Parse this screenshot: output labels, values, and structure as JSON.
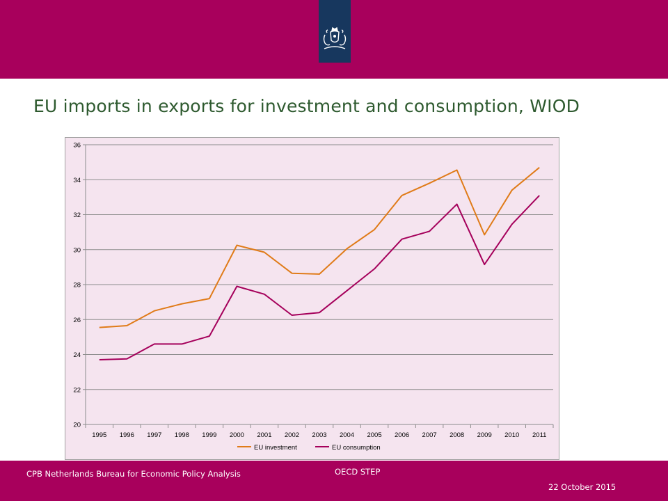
{
  "header": {
    "brand_color": "#a8005c",
    "logo_color": "#17375e",
    "logo_icon": "royal-coat-of-arms-icon"
  },
  "slide": {
    "title": "EU imports in exports for investment and consumption, WIOD"
  },
  "chart_data": {
    "type": "line",
    "title": "",
    "xlabel": "",
    "ylabel": "",
    "categories": [
      "1995",
      "1996",
      "1997",
      "1998",
      "1999",
      "2000",
      "2001",
      "2002",
      "2003",
      "2004",
      "2005",
      "2006",
      "2007",
      "2008",
      "2009",
      "2010",
      "2011"
    ],
    "ylim": [
      20,
      36
    ],
    "yticks": [
      20,
      22,
      24,
      26,
      28,
      30,
      32,
      34,
      36
    ],
    "grid": true,
    "legend_position": "bottom",
    "plot_background": "#f5e4ef",
    "series": [
      {
        "name": "EU investment",
        "color": "#e07b18",
        "values": [
          25.55,
          25.65,
          26.5,
          26.9,
          27.2,
          30.25,
          29.85,
          28.65,
          28.6,
          30.05,
          31.15,
          33.1,
          33.8,
          34.55,
          30.85,
          33.4,
          34.7
        ]
      },
      {
        "name": "EU consumption",
        "color": "#a5005b",
        "values": [
          23.7,
          23.75,
          24.6,
          24.6,
          25.05,
          27.9,
          27.45,
          26.25,
          26.4,
          27.65,
          28.9,
          30.6,
          31.05,
          32.6,
          29.15,
          31.45,
          33.1
        ]
      }
    ]
  },
  "footer": {
    "organization": "CPB Netherlands Bureau for Economic Policy Analysis",
    "event": "OECD STEP",
    "date": "22 October 2015"
  }
}
